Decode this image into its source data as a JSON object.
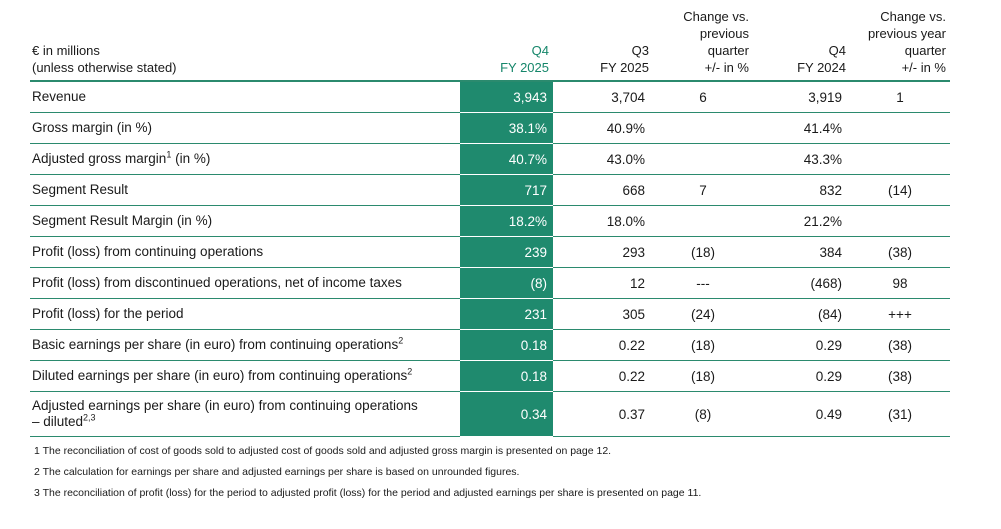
{
  "header": {
    "label_line1": "€ in millions",
    "label_line2": "(unless otherwise stated)",
    "q4_line1": "Q4",
    "q4_line2": "FY 2025",
    "q3_line1": "Q3",
    "q3_line2": "FY 2025",
    "chq_line1": "Change vs.",
    "chq_line2": "previous",
    "chq_line3": "quarter",
    "chq_line4": "+/- in %",
    "q4py_line1": "Q4",
    "q4py_line2": "FY 2024",
    "chy_line1": "Change vs.",
    "chy_line2": "previous year",
    "chy_line3": "quarter",
    "chy_line4": "+/- in %"
  },
  "rows": [
    {
      "label": "Revenue",
      "sup": "",
      "q4": "3,943",
      "q3": "3,704",
      "chq": "6",
      "q4py": "3,919",
      "chy": "1"
    },
    {
      "label": "Gross margin (in %)",
      "sup": "",
      "q4": "38.1%",
      "q3": "40.9%",
      "chq": "",
      "q4py": "41.4%",
      "chy": ""
    },
    {
      "label": "Adjusted gross margin",
      "sup": "1",
      "label_suffix": " (in %)",
      "q4": "40.7%",
      "q3": "43.0%",
      "chq": "",
      "q4py": "43.3%",
      "chy": ""
    },
    {
      "label": "Segment Result",
      "sup": "",
      "q4": "717",
      "q3": "668",
      "chq": "7",
      "q4py": "832",
      "chy": "(14)"
    },
    {
      "label": "Segment Result Margin (in %)",
      "sup": "",
      "q4": "18.2%",
      "q3": "18.0%",
      "chq": "",
      "q4py": "21.2%",
      "chy": ""
    },
    {
      "label": "Profit (loss) from continuing operations",
      "sup": "",
      "q4": "239",
      "q3": "293",
      "chq": "(18)",
      "q4py": "384",
      "chy": "(38)"
    },
    {
      "label": "Profit (loss) from discontinued operations, net of income taxes",
      "sup": "",
      "q4": "(8)",
      "q3": "12",
      "chq": "---",
      "q4py": "(468)",
      "chy": "98"
    },
    {
      "label": "Profit (loss) for the period",
      "sup": "",
      "q4": "231",
      "q3": "305",
      "chq": "(24)",
      "q4py": "(84)",
      "chy": "+++"
    },
    {
      "label": "Basic earnings per share (in euro) from continuing operations",
      "sup": "2",
      "q4": "0.18",
      "q3": "0.22",
      "chq": "(18)",
      "q4py": "0.29",
      "chy": "(38)"
    },
    {
      "label": "Diluted earnings per share (in euro) from continuing operations",
      "sup": "2",
      "q4": "0.18",
      "q3": "0.22",
      "chq": "(18)",
      "q4py": "0.29",
      "chy": "(38)"
    },
    {
      "label": "Adjusted earnings per share (in euro) from continuing operations",
      "label_line2": "– diluted",
      "sup": "2,3",
      "q4": "0.34",
      "q3": "0.37",
      "chq": "(8)",
      "q4py": "0.49",
      "chy": "(31)"
    }
  ],
  "footnotes": [
    "1 The reconciliation of cost of goods sold to adjusted cost of goods sold and adjusted gross margin is presented on page 12.",
    "2 The calculation for earnings per share and adjusted earnings per share is based on unrounded figures.",
    "3 The reconciliation of profit (loss) for the period to adjusted profit (loss) for the period and adjusted earnings per share is presented on page 11."
  ],
  "colors": {
    "accent": "#1f8a6e",
    "accent_text": "#15866a",
    "rule": "#2b8a6e"
  }
}
